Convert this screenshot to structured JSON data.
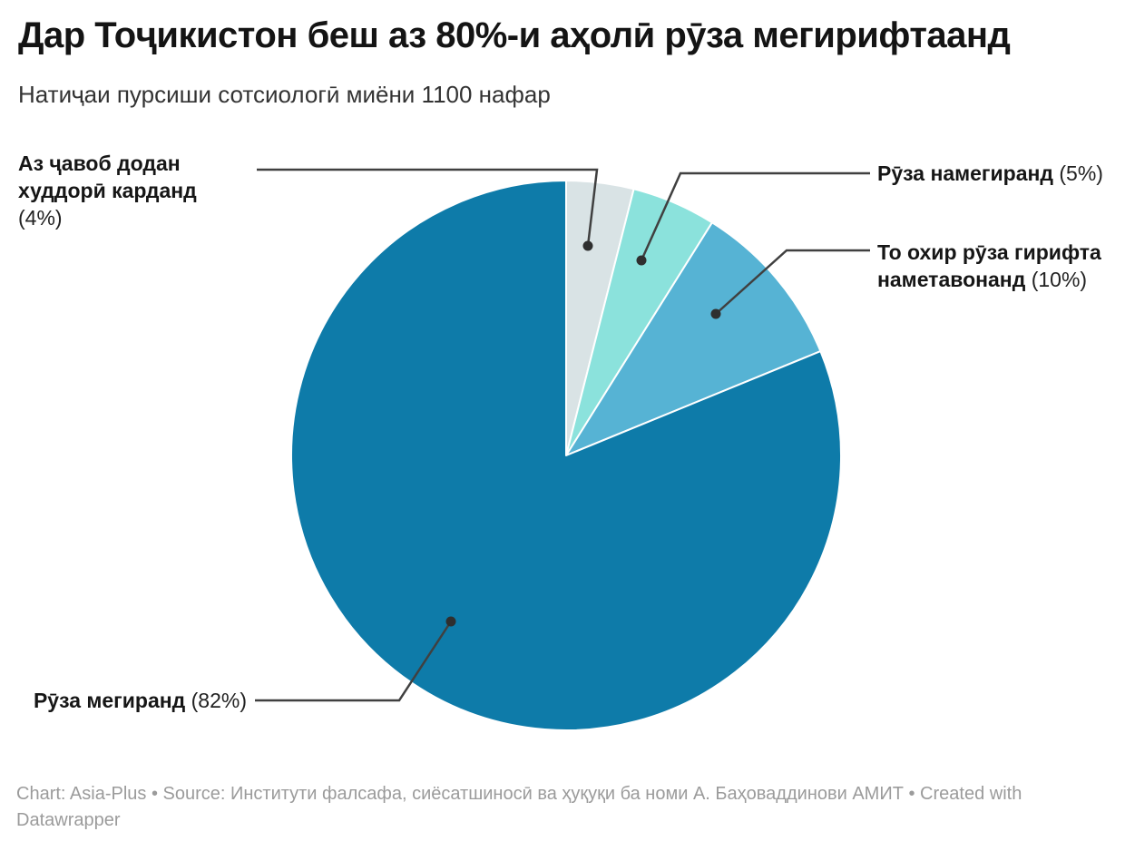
{
  "header": {
    "title": "Дар Тоҷикистон беш аз 80%-и аҳолӣ рӯза мегирифтаанд",
    "subtitle": "Натиҷаи пурсиши сотсиологӣ миёни 1100 нафар"
  },
  "callouts": [
    {
      "name": "Аз ҷавоб додан\nхуддорӣ карданд",
      "value": "(4%)"
    },
    {
      "name": "Рӯза намегиранд",
      "value": "(5%)"
    },
    {
      "name": "То охир рӯза гирифта\nнаметавонанд",
      "value": "(10%)"
    },
    {
      "name": "Рӯза мегиранд",
      "value": "(82%)"
    }
  ],
  "footer": {
    "text": "Chart: Asia-Plus • Source: Институти фалсафа, сиёсатшиносӣ ва ҳуқуқи ба номи А. Баҳоваддинови АМИТ • Created with Datawrapper"
  },
  "chart_data": {
    "type": "pie",
    "title": "Дар Тоҷикистон беш аз 80%-и аҳолӣ рӯза мегирифтаанд",
    "subtitle": "Натиҷаи пурсиши сотсиологӣ миёни 1100 нафар",
    "categories": [
      "Аз ҷавоб додан худдорӣ карданд",
      "Рӯза намегиранд",
      "То охир рӯза гирифта наметавонанд",
      "Рӯза мегиранд"
    ],
    "values": [
      4,
      5,
      10,
      82
    ],
    "unit": "%",
    "slices": [
      {
        "label": "Аз ҷавоб додан худдорӣ карданд",
        "value": 4,
        "color": "#d9e3e5"
      },
      {
        "label": "Рӯза намегиранд",
        "value": 5,
        "color": "#8be2dc"
      },
      {
        "label": "То охир рӯза гирифта наметавонанд",
        "value": 10,
        "color": "#56b3d4"
      },
      {
        "label": "Рӯза мегиранд",
        "value": 82,
        "color": "#0e7ba9"
      }
    ],
    "start_angle_deg": 0,
    "direction": "clockwise",
    "legend": "none (leader-line labels)",
    "source": "Chart: Asia-Plus • Source: Институти фалсафа, сиёсатшиносӣ ва ҳуқуқи ба номи А. Баҳоваддинови АМИТ • Created with Datawrapper"
  },
  "colors": {
    "slice_82": "#0e7ba9",
    "slice_10": "#56b3d4",
    "slice_5": "#8be2dc",
    "slice_4": "#d9e3e5",
    "leader_line": "#404040",
    "footer_text": "#9b9b9b"
  }
}
